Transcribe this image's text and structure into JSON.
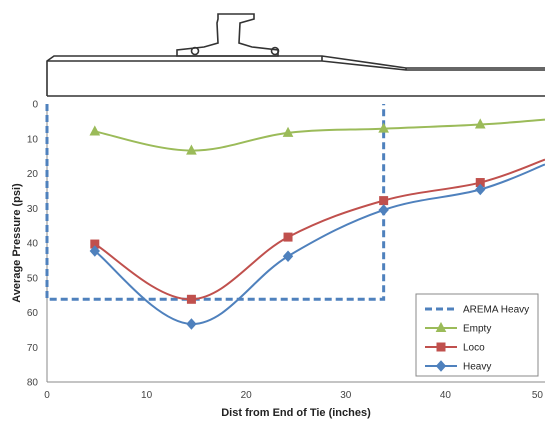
{
  "chart_data": {
    "type": "line",
    "xlabel": "Dist from End of Tie (inches)",
    "ylabel": "Average Pressure (psi)",
    "xlim": [
      0,
      50
    ],
    "ylim": [
      0,
      80
    ],
    "y_inverted": true,
    "x_ticks": [
      "0",
      "10",
      "20",
      "30",
      "40",
      "50"
    ],
    "y_ticks": [
      "0",
      "10",
      "20",
      "30",
      "40",
      "50",
      "60",
      "70",
      "80"
    ],
    "grid": false,
    "legend_position": "bottom-right",
    "series": [
      {
        "name": "AREMA Heavy",
        "style": "dashed",
        "color": "#4f81bd",
        "marker": "none",
        "x": [
          0,
          0,
          33.8,
          33.8
        ],
        "y": [
          0,
          56.2,
          56.2,
          0
        ]
      },
      {
        "name": "Empty",
        "style": "solid",
        "color": "#9bbb59",
        "marker": "triangle",
        "x": [
          4.8,
          14.5,
          24.2,
          33.8,
          43.5,
          50
        ],
        "y": [
          7.9,
          13.4,
          8.3,
          7.1,
          5.9,
          4.5
        ],
        "marked_points": 5
      },
      {
        "name": "Loco",
        "style": "solid",
        "color": "#c0504d",
        "marker": "square",
        "x": [
          4.8,
          14.5,
          24.2,
          33.8,
          43.5,
          50
        ],
        "y": [
          40.3,
          56.2,
          38.3,
          27.8,
          22.6,
          16.0
        ],
        "marked_points": 5
      },
      {
        "name": "Heavy",
        "style": "solid",
        "color": "#4f81bd",
        "marker": "diamond",
        "x": [
          4.8,
          14.5,
          24.2,
          33.8,
          43.5,
          50
        ],
        "y": [
          42.3,
          63.3,
          43.8,
          30.5,
          24.6,
          17.4
        ],
        "marked_points": 5
      }
    ]
  },
  "legend": {
    "order": [
      "AREMA Heavy",
      "Empty",
      "Loco",
      "Heavy"
    ]
  },
  "illustration": {
    "name": "rail-and-tie-profile",
    "stroke_color": "#333333"
  }
}
